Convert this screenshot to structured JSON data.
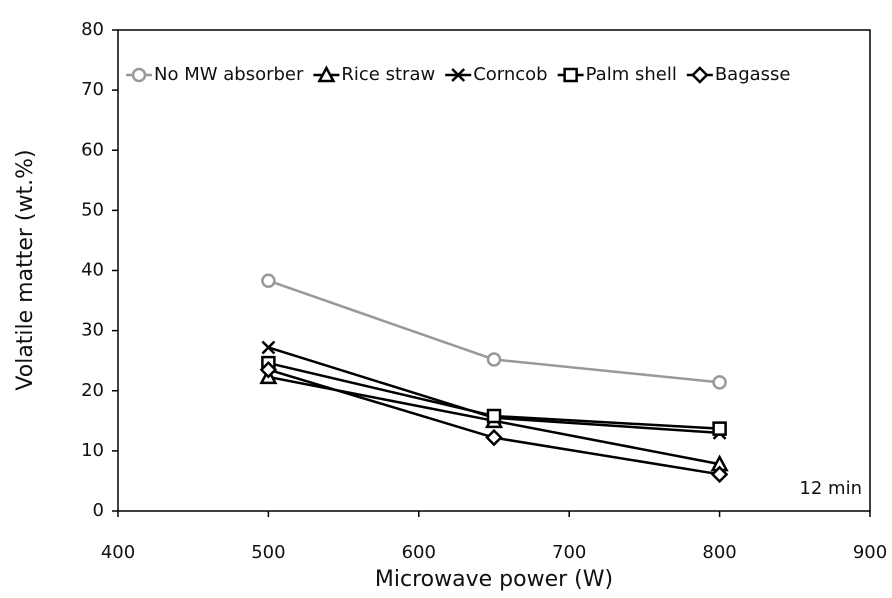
{
  "chart_data": {
    "type": "line",
    "x_label": "Microwave power (W)",
    "y_label": "Volatile matter (wt.%)",
    "annotation": "12 min",
    "x": [
      500,
      650,
      800
    ],
    "series": [
      {
        "name": "No MW absorber",
        "color": "#999999",
        "marker": "circle",
        "values": [
          38.3,
          25.2,
          21.4
        ]
      },
      {
        "name": "Rice straw",
        "color": "#000000",
        "marker": "triangle",
        "values": [
          22.3,
          15.0,
          7.8
        ]
      },
      {
        "name": "Corncob",
        "color": "#000000",
        "marker": "x",
        "values": [
          27.2,
          15.5,
          13.0
        ]
      },
      {
        "name": "Palm shell",
        "color": "#000000",
        "marker": "square",
        "values": [
          24.6,
          15.8,
          13.7
        ]
      },
      {
        "name": "Bagasse",
        "color": "#000000",
        "marker": "diamond",
        "values": [
          23.5,
          12.2,
          6.1
        ]
      }
    ],
    "xlim": [
      400,
      900
    ],
    "xticks": [
      400,
      500,
      600,
      700,
      800,
      900
    ],
    "ylim": [
      0,
      80
    ],
    "yticks": [
      0,
      10,
      20,
      30,
      40,
      50,
      60,
      70,
      80
    ],
    "legend": "top",
    "grid": false
  }
}
